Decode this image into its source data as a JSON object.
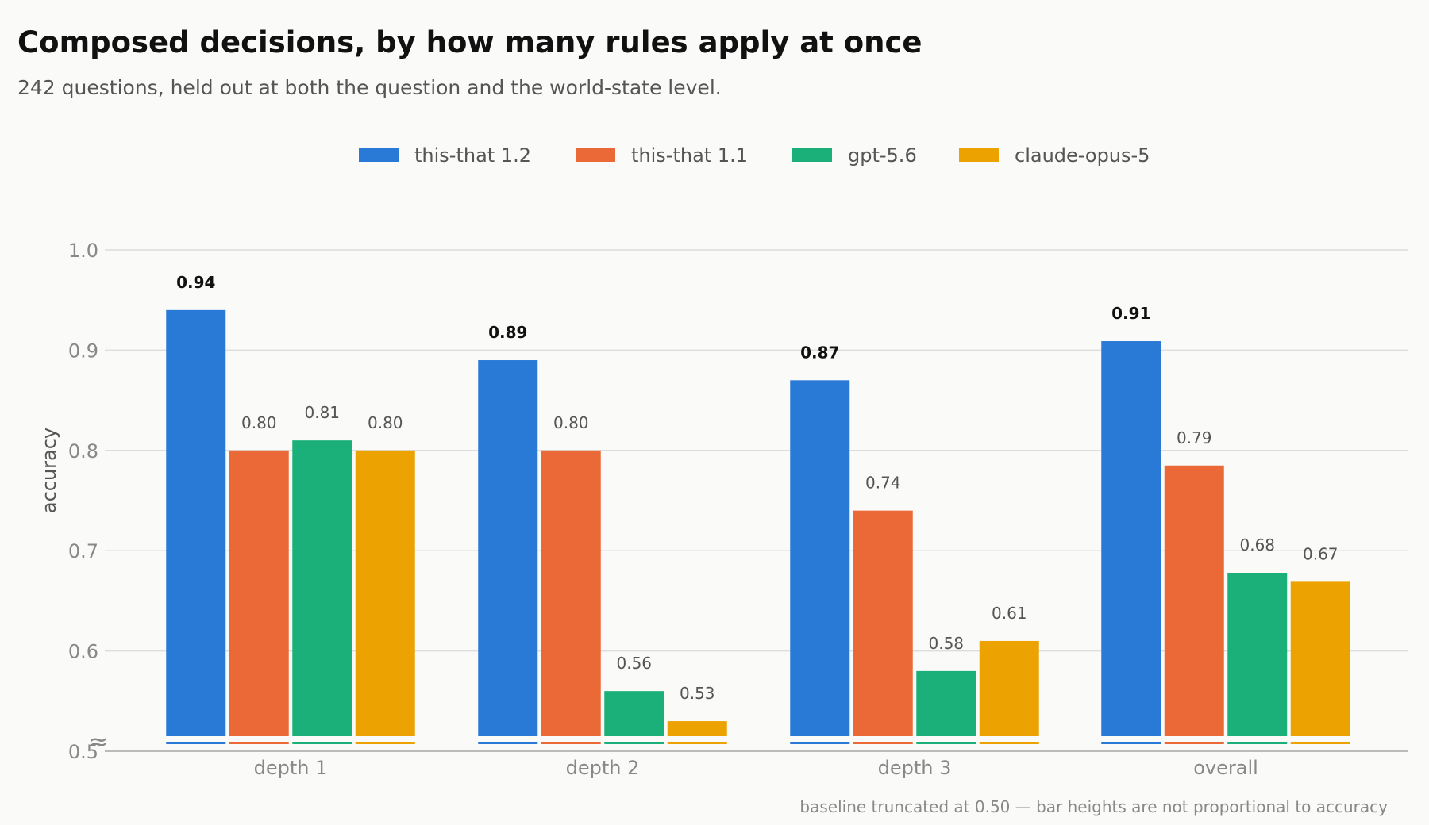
{
  "chart_data": {
    "type": "bar",
    "title": "Composed decisions, by how many rules apply at once",
    "subtitle": "242 questions, held out at both the question and the world-state level.",
    "ylabel": "accuracy",
    "xlabel": "",
    "ylim": [
      0.5,
      1.0
    ],
    "yticks": [
      "0.5",
      "0.6",
      "0.7",
      "0.8",
      "0.9",
      "1.0"
    ],
    "ytick_values": [
      0.5,
      0.6,
      0.7,
      0.8,
      0.9,
      1.0
    ],
    "axis_break": "≈",
    "grid": true,
    "legend_position": "top-center",
    "categories": [
      "depth 1",
      "depth 2",
      "depth 3",
      "overall"
    ],
    "series": [
      {
        "name": "this-that 1.2",
        "color": "#2979d6",
        "values": [
          0.94,
          0.89,
          0.87,
          0.909
        ],
        "labels": [
          "0.94",
          "0.89",
          "0.87",
          "0.91"
        ],
        "bold_labels": true
      },
      {
        "name": "this-that 1.1",
        "color": "#ea6936",
        "values": [
          0.8,
          0.8,
          0.74,
          0.785
        ],
        "labels": [
          "0.80",
          "0.80",
          "0.74",
          "0.79"
        ],
        "bold_labels": false
      },
      {
        "name": "gpt-5.6",
        "color": "#1bb07a",
        "values": [
          0.81,
          0.56,
          0.58,
          0.678
        ],
        "labels": [
          "0.81",
          "0.56",
          "0.58",
          "0.68"
        ],
        "bold_labels": false
      },
      {
        "name": "claude-opus-5",
        "color": "#eca200",
        "values": [
          0.8,
          0.53,
          0.61,
          0.669
        ],
        "labels": [
          "0.80",
          "0.53",
          "0.61",
          "0.67"
        ],
        "bold_labels": false
      }
    ],
    "footnote": "baseline truncated at 0.50 — bar heights are not proportional to accuracy"
  }
}
